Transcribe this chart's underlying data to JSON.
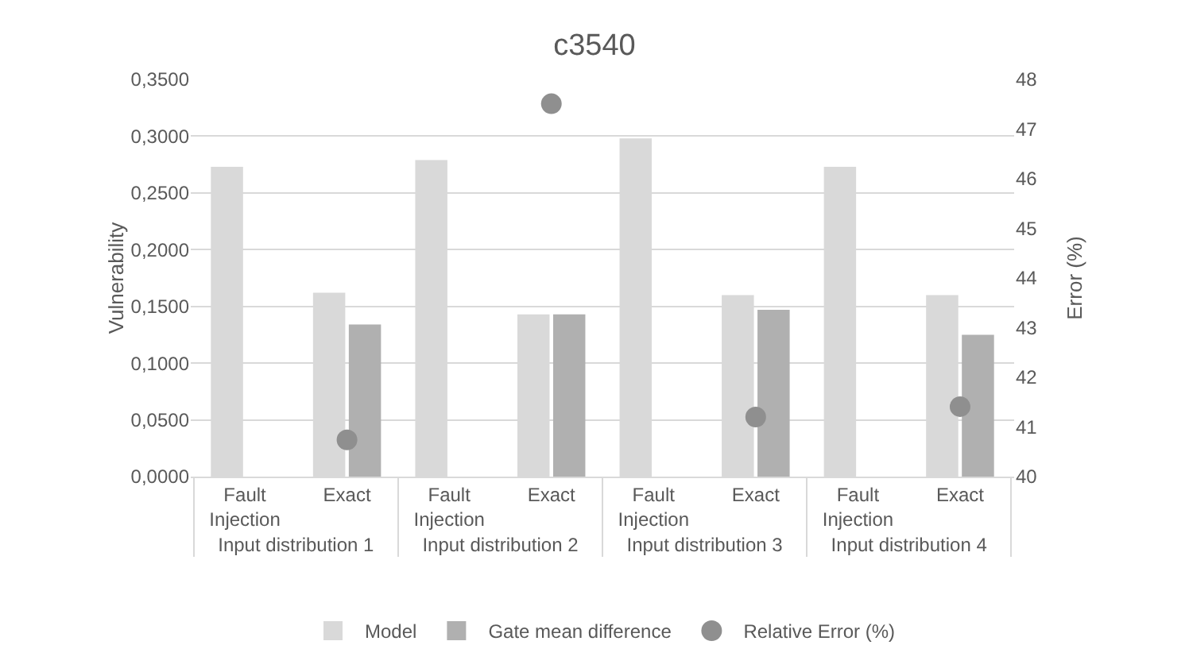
{
  "chart_data": {
    "type": "bar",
    "title": "c3540",
    "ylabel": "Vulnerability",
    "y2label": "Error (%)",
    "categories": [
      "Fault Injection",
      "Exact",
      "Fault Injection",
      "Exact",
      "Fault Injection",
      "Exact",
      "Fault Injection",
      "Exact"
    ],
    "annotations": [
      "Input distribution 1",
      "Input distribution 2",
      "Input distribution 3",
      "Input distribution 4"
    ],
    "series": [
      {
        "name": "Model",
        "color": "#d9d9d9",
        "values": [
          0.273,
          0.162,
          0.279,
          0.143,
          0.298,
          0.16,
          0.273,
          0.16
        ]
      },
      {
        "name": "Gate mean difference",
        "color": "#b0b0b0",
        "values": [
          null,
          0.134,
          null,
          0.143,
          null,
          0.147,
          null,
          0.125
        ]
      },
      {
        "name": "Relative Error (%)",
        "type": "scatter",
        "axis": "y2",
        "marker": "circle",
        "color": "#8f8f8f",
        "values": [
          null,
          40.74,
          null,
          47.51,
          null,
          41.2,
          null,
          41.41
        ]
      }
    ],
    "ylim": [
      0,
      0.35
    ],
    "yticks": [
      {
        "value": 0,
        "label": "0,0000"
      },
      {
        "value": 0.05,
        "label": "0,0500"
      },
      {
        "value": 0.1,
        "label": "0,1000"
      },
      {
        "value": 0.15,
        "label": "0,1500"
      },
      {
        "value": 0.2,
        "label": "0,2000"
      },
      {
        "value": 0.25,
        "label": "0,2500"
      },
      {
        "value": 0.3,
        "label": "0,3000"
      },
      {
        "value": 0.35,
        "label": "0,3500"
      }
    ],
    "y2lim": [
      40,
      48
    ],
    "y2ticks": [
      40,
      41,
      42,
      43,
      44,
      45,
      46,
      47,
      48
    ],
    "grid": "y",
    "legend": "bottom"
  }
}
